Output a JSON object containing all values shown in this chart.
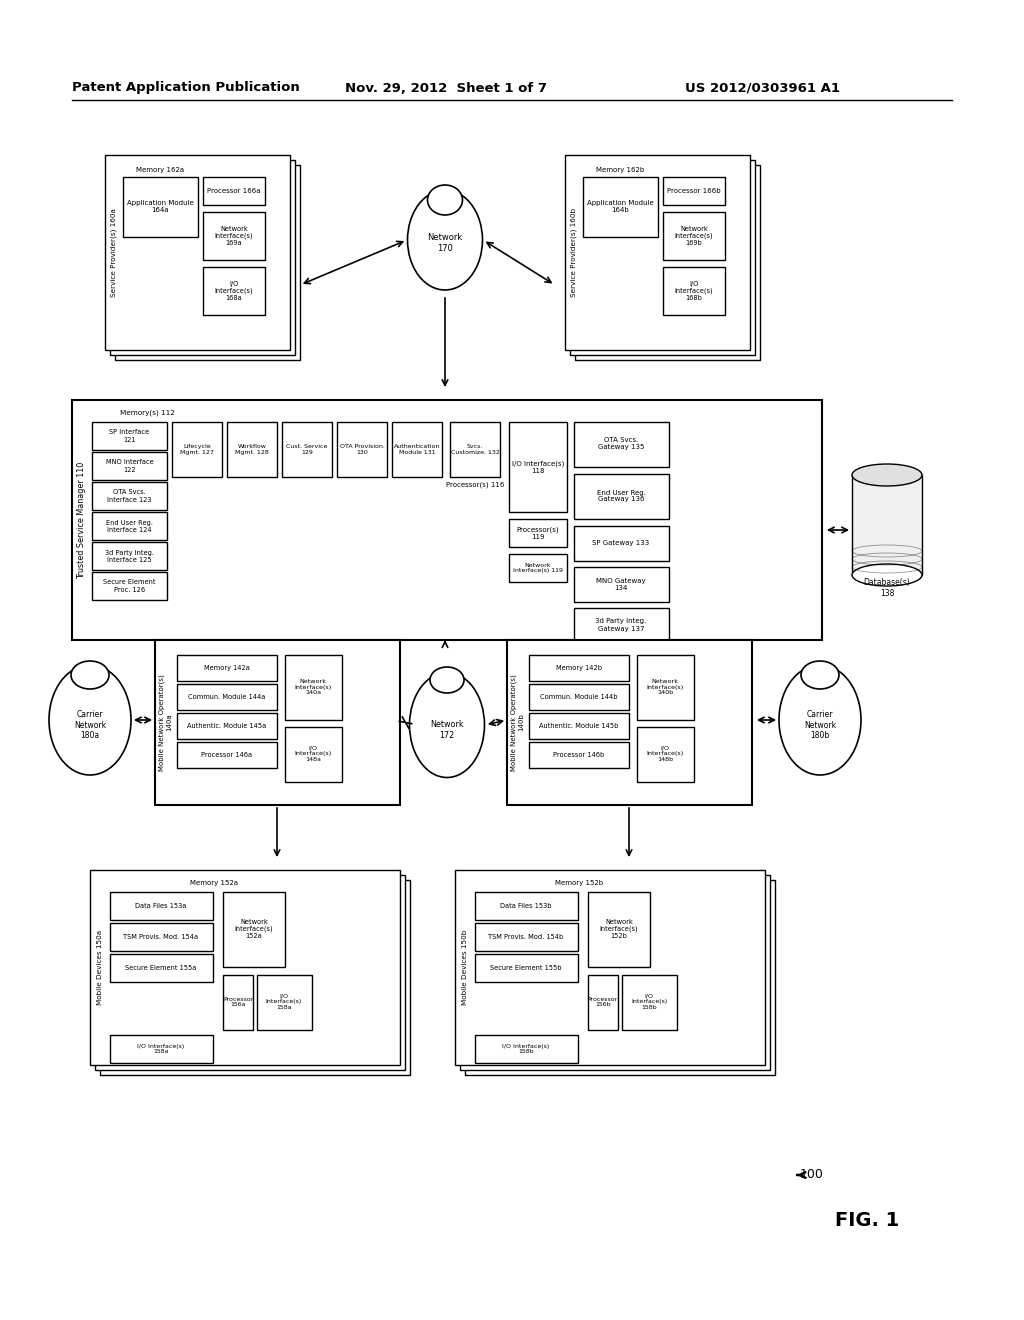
{
  "header_left": "Patent Application Publication",
  "header_mid": "Nov. 29, 2012  Sheet 1 of 7",
  "header_right": "US 2012/0303961 A1",
  "fig_label": "FIG. 1",
  "fig_number": "100",
  "bg_color": "#ffffff",
  "box_color": "#000000"
}
